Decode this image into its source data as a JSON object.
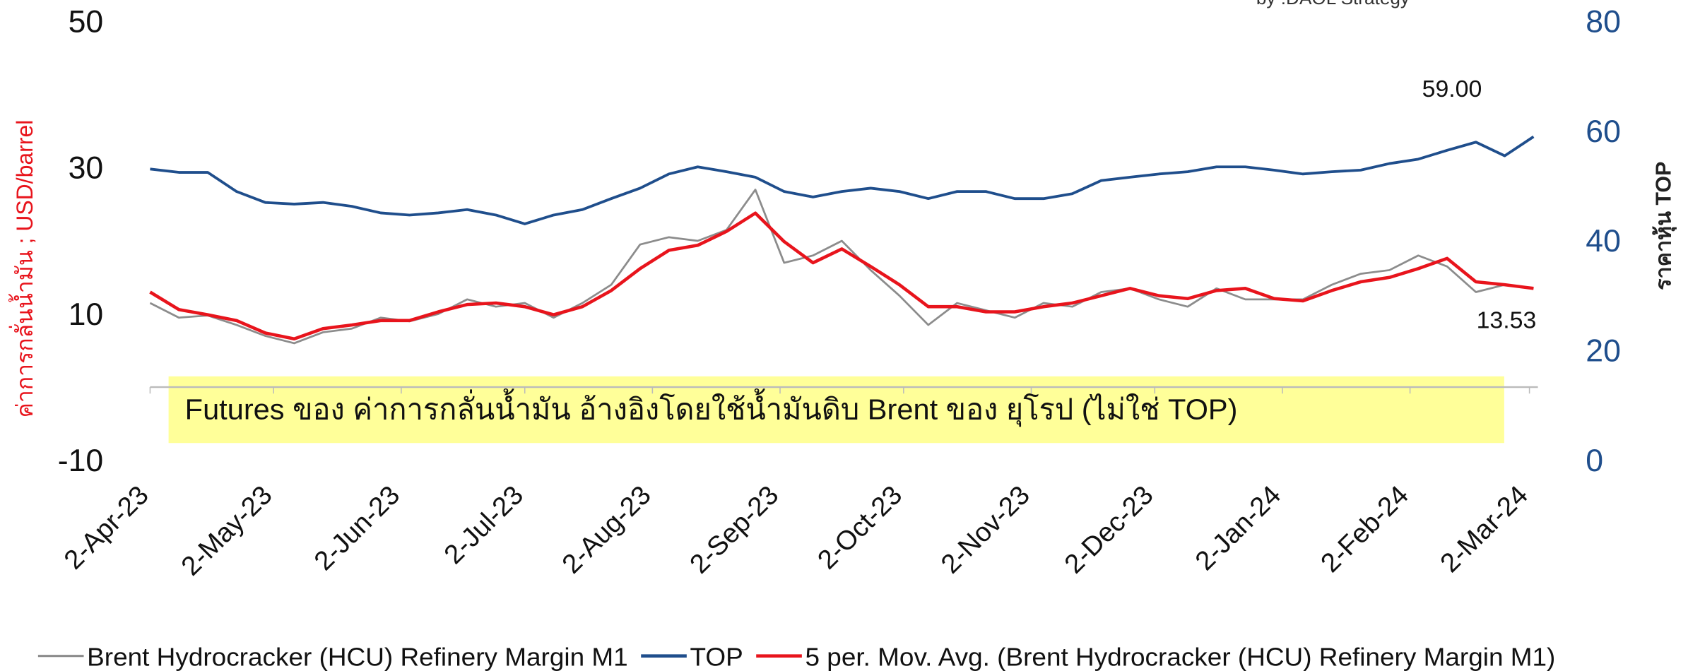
{
  "chart_data": {
    "type": "line",
    "source": "by :DAOL Strategy",
    "y_label": "ค่าการกลั่นน้ำมัน ; USD/barrel",
    "y2_label": "ราคาหุ้น TOP",
    "annotations": [
      "59.00",
      "13.53",
      "Futures ของ ค่าการกลั่นน้ำมัน อ้างอิงโดยใช้น้ำมันดิบ Brent ของ ยุโรป (ไม่ใช่ TOP)"
    ],
    "x": [
      "2023-04-02",
      "2023-04-09",
      "2023-04-16",
      "2023-04-23",
      "2023-04-30",
      "2023-05-07",
      "2023-05-14",
      "2023-05-21",
      "2023-05-28",
      "2023-06-04",
      "2023-06-11",
      "2023-06-18",
      "2023-06-25",
      "2023-07-02",
      "2023-07-09",
      "2023-07-16",
      "2023-07-23",
      "2023-07-30",
      "2023-08-06",
      "2023-08-13",
      "2023-08-20",
      "2023-08-27",
      "2023-09-03",
      "2023-09-10",
      "2023-09-17",
      "2023-09-24",
      "2023-10-01",
      "2023-10-08",
      "2023-10-15",
      "2023-10-22",
      "2023-10-29",
      "2023-11-05",
      "2023-11-12",
      "2023-11-19",
      "2023-11-26",
      "2023-12-03",
      "2023-12-10",
      "2023-12-17",
      "2023-12-24",
      "2023-12-31",
      "2024-01-07",
      "2024-01-14",
      "2024-01-21",
      "2024-01-28",
      "2024-02-04",
      "2024-02-11",
      "2024-02-18",
      "2024-02-25",
      "2024-03-03"
    ],
    "xlim": [
      "2023-04-02",
      "2024-03-03"
    ],
    "xticks": [
      {
        "value": "2023-04-02",
        "label": "2-Apr-23"
      },
      {
        "value": "2023-05-02",
        "label": "2-May-23"
      },
      {
        "value": "2023-06-02",
        "label": "2-Jun-23"
      },
      {
        "value": "2023-07-02",
        "label": "2-Jul-23"
      },
      {
        "value": "2023-08-02",
        "label": "2-Aug-23"
      },
      {
        "value": "2023-09-02",
        "label": "2-Sep-23"
      },
      {
        "value": "2023-10-02",
        "label": "2-Oct-23"
      },
      {
        "value": "2023-11-02",
        "label": "2-Nov-23"
      },
      {
        "value": "2023-12-02",
        "label": "2-Dec-23"
      },
      {
        "value": "2024-01-02",
        "label": "2-Jan-24"
      },
      {
        "value": "2024-02-02",
        "label": "2-Feb-24"
      },
      {
        "value": "2024-03-02",
        "label": "2-Mar-24"
      }
    ],
    "ylim": [
      -10,
      50
    ],
    "yticks": [
      -10,
      10,
      30,
      50
    ],
    "y2lim": [
      0,
      80
    ],
    "y2ticks": [
      0,
      20,
      40,
      60,
      80
    ],
    "legend": "bottom",
    "series": [
      {
        "name": "Brent Hydrocracker (HCU) Refinery Margin M1",
        "color": "#8c8c8c",
        "values": [
          11.5,
          9.5,
          9.8,
          8.5,
          7.0,
          6.0,
          7.5,
          8.0,
          9.5,
          9.0,
          10.0,
          12.0,
          11.0,
          11.5,
          9.5,
          11.5,
          14.0,
          19.5,
          20.5,
          20.0,
          21.5,
          27.0,
          17.0,
          18.0,
          20.0,
          16.0,
          12.5,
          8.5,
          11.5,
          10.5,
          9.5,
          11.5,
          11.0,
          13.0,
          13.5,
          12.0,
          11.0,
          13.5,
          12.0,
          12.0,
          12.0,
          14.0,
          15.5,
          16.0,
          18.0,
          16.5,
          13.0,
          14.0,
          13.53
        ]
      },
      {
        "name": "TOP",
        "color": "#1f4e8c",
        "axis": "y2",
        "values": [
          53.1,
          52.5,
          52.5,
          49,
          47,
          46.7,
          47,
          46.3,
          45.1,
          44.7,
          45.1,
          45.7,
          44.7,
          43.1,
          44.7,
          45.7,
          47.7,
          49.6,
          52.2,
          53.5,
          52.6,
          51.6,
          49,
          48,
          49,
          49.6,
          49,
          47.7,
          49,
          49,
          47.7,
          47.7,
          48.6,
          51,
          51.6,
          52.2,
          52.6,
          53.5,
          53.5,
          52.9,
          52.2,
          52.6,
          52.9,
          54.1,
          54.9,
          56.5,
          58,
          55.5,
          59.0
        ]
      },
      {
        "name": "5 per. Mov. Avg. (Brent Hydrocracker (HCU) Refinery Margin M1)",
        "color": "#e8141c",
        "values": [
          13.0,
          10.6,
          9.9,
          9.1,
          7.4,
          6.6,
          8.0,
          8.5,
          9.1,
          9.1,
          10.3,
          11.3,
          11.5,
          11.0,
          9.9,
          11.0,
          13.2,
          16.2,
          18.7,
          19.4,
          21.3,
          23.8,
          19.9,
          17.0,
          18.9,
          16.5,
          14.0,
          11.0,
          11.0,
          10.3,
          10.3,
          11.0,
          11.5,
          12.5,
          13.5,
          12.5,
          12.1,
          13.2,
          13.5,
          12.1,
          11.8,
          13.2,
          14.4,
          15.0,
          16.2,
          17.6,
          14.4,
          14.0,
          13.5
        ]
      }
    ]
  }
}
